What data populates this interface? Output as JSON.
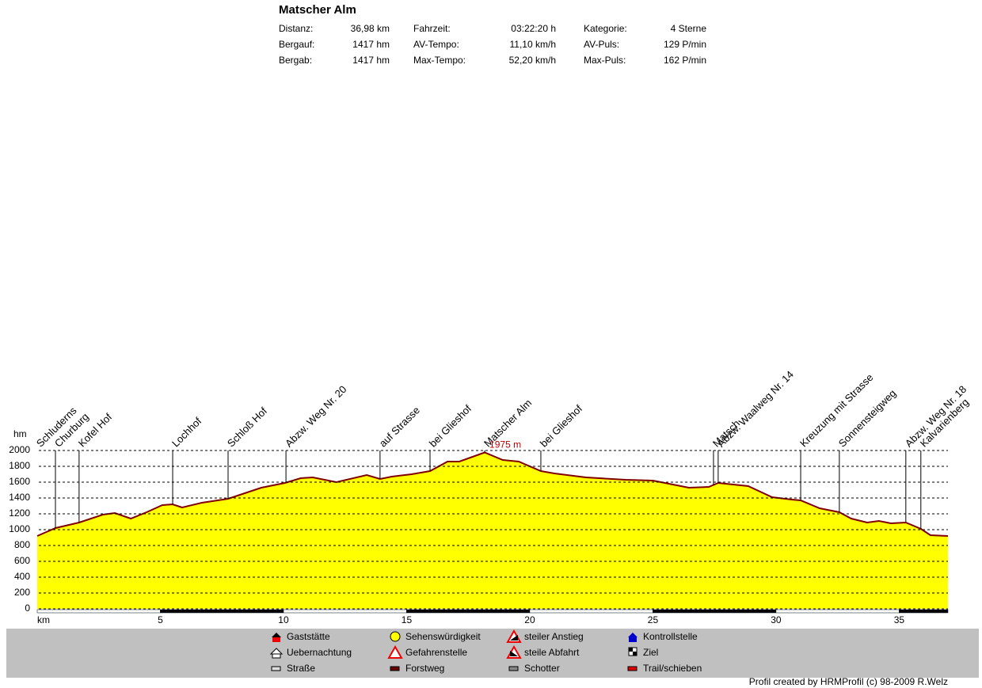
{
  "header": {
    "title": "Matscher Alm",
    "stats": [
      [
        [
          "Distanz:",
          "36,98 km"
        ],
        [
          "Fahrzeit:",
          "03:22:20 h"
        ],
        [
          "Kategorie:",
          "4 Sterne"
        ]
      ],
      [
        [
          "Bergauf:",
          "1417 hm"
        ],
        [
          "AV-Tempo:",
          "11,10 km/h"
        ],
        [
          "AV-Puls:",
          "129 P/min"
        ]
      ],
      [
        [
          "Bergab:",
          "1417 hm"
        ],
        [
          "Max-Tempo:",
          "52,20 km/h"
        ],
        [
          "Max-Puls:",
          "162 P/min"
        ]
      ]
    ]
  },
  "chart_data": {
    "type": "area",
    "xlabel": "km",
    "ylabel": "hm",
    "x": [
      0,
      0.74,
      1.7,
      2.67,
      3.15,
      3.8,
      4.44,
      5.08,
      5.5,
      5.88,
      6.69,
      7.75,
      9.1,
      10.06,
      10.7,
      11.19,
      12.15,
      13.38,
      13.92,
      14.4,
      15.2,
      15.95,
      16.66,
      17.14,
      18.17,
      18.9,
      19.55,
      20.45,
      21,
      22.28,
      23.89,
      25,
      26.46,
      27.27,
      27.65,
      28.87,
      29.84,
      30.64,
      31,
      31.77,
      32.57,
      33.05,
      33.7,
      34.18,
      34.66,
      35.27,
      35.88,
      36.27,
      36.98
    ],
    "values": [
      920,
      1020,
      1090,
      1190,
      1210,
      1140,
      1220,
      1310,
      1320,
      1280,
      1340,
      1390,
      1530,
      1590,
      1650,
      1660,
      1600,
      1690,
      1640,
      1670,
      1700,
      1740,
      1860,
      1860,
      1975,
      1880,
      1860,
      1740,
      1710,
      1660,
      1630,
      1620,
      1530,
      1540,
      1590,
      1550,
      1410,
      1380,
      1370,
      1270,
      1220,
      1140,
      1090,
      1110,
      1080,
      1090,
      1010,
      930,
      920
    ],
    "color": "#ffff00",
    "line_color": "#800000",
    "xlim": [
      0,
      36.98
    ],
    "ylim": [
      0,
      2000
    ],
    "xticks": [
      5,
      10,
      15,
      20,
      25,
      30,
      35
    ],
    "yticks": [
      0,
      200,
      400,
      600,
      800,
      1000,
      1200,
      1400,
      1600,
      1800,
      2000
    ],
    "grid": true,
    "peak": {
      "x": 18.17,
      "value": 1975,
      "label": "1975 m"
    },
    "waypoints": [
      {
        "label": "Schluderns",
        "x": 0
      },
      {
        "label": "Churburg",
        "x": 0.74
      },
      {
        "label": "Kofel Hof",
        "x": 1.7
      },
      {
        "label": "Lochhof",
        "x": 5.5
      },
      {
        "label": "Schloß Hof",
        "x": 7.75
      },
      {
        "label": "Abzw. Weg Nr. 20",
        "x": 10.1
      },
      {
        "label": "auf Strasse",
        "x": 13.92
      },
      {
        "label": "bei Glieshof",
        "x": 15.95
      },
      {
        "label": "Matscher Alm",
        "x": 18.17
      },
      {
        "label": "bei Glieshof",
        "x": 20.45
      },
      {
        "label": "Matsch",
        "x": 27.46
      },
      {
        "label": "Abzw. Waalweg Nr. 14",
        "x": 27.65
      },
      {
        "label": "Kreuzung mit Strasse",
        "x": 31
      },
      {
        "label": "Sonnensteigweg",
        "x": 32.57
      },
      {
        "label": "Abzw. Weg Nr. 18",
        "x": 35.27
      },
      {
        "label": "Kalvarienberg",
        "x": 35.88
      }
    ]
  },
  "legend": [
    [
      "Gaststätte",
      "Uebernachtung",
      "Straße"
    ],
    [
      "Sehenswürdigkeit",
      "Gefahrenstelle",
      "Forstweg"
    ],
    [
      "steiler Anstieg",
      "steile Abfahrt",
      "Schotter"
    ],
    [
      "Kontrollstelle",
      "Ziel",
      "Trail/schieben"
    ]
  ],
  "footer": "Profil created by HRMProfil (c) 98-2009 R.Welz"
}
